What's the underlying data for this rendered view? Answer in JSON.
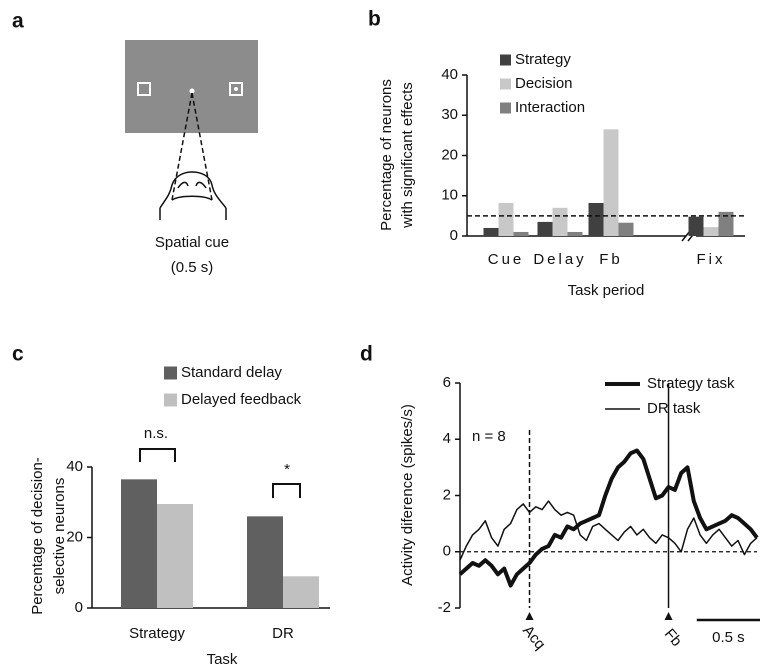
{
  "panel_a": {
    "panel_label": "a",
    "caption": [
      "Spatial cue",
      "(0.5 s)"
    ]
  },
  "chart_data": [
    {
      "type": "bar",
      "panel_label": "b",
      "ylabel": [
        "Percentage of neurons",
        "with significant effects"
      ],
      "xlabel": "Task period",
      "categories": [
        "Cue",
        "Delay",
        "Fb",
        "Fix"
      ],
      "series": [
        {
          "name": "Strategy",
          "color": "#404040",
          "values": [
            2,
            3.5,
            8.2,
            4.8
          ]
        },
        {
          "name": "Decision",
          "color": "#c8c8c8",
          "values": [
            8.2,
            7,
            26.5,
            2.2
          ]
        },
        {
          "name": "Interaction",
          "color": "#808080",
          "values": [
            1,
            1,
            3.3,
            6
          ]
        }
      ],
      "ylim": [
        0,
        40
      ],
      "yticks": [
        0,
        10,
        20,
        30,
        40
      ],
      "reference_line": 5
    },
    {
      "type": "bar",
      "panel_label": "c",
      "ylabel": [
        "Percentage of decision-",
        "selective neurons"
      ],
      "xlabel": "Task",
      "categories": [
        "Strategy",
        "DR"
      ],
      "series": [
        {
          "name": "Standard delay",
          "color": "#606060",
          "values": [
            36.5,
            26
          ]
        },
        {
          "name": "Delayed feedback",
          "color": "#c0c0c0",
          "values": [
            29.5,
            9
          ]
        }
      ],
      "ylim": [
        0,
        40
      ],
      "yticks": [
        0,
        20,
        40
      ],
      "annotations": [
        "n.s.",
        "*"
      ]
    },
    {
      "type": "line",
      "panel_label": "d",
      "ylabel": "Activity diference (spikes/s)",
      "annotation": "n = 8",
      "x": [
        -0.55,
        -0.5,
        -0.45,
        -0.4,
        -0.35,
        -0.3,
        -0.25,
        -0.2,
        -0.15,
        -0.1,
        -0.05,
        0,
        0.05,
        0.1,
        0.15,
        0.2,
        0.25,
        0.3,
        0.35,
        0.4,
        0.45,
        0.5,
        0.55,
        0.6,
        0.65,
        0.7,
        0.75,
        0.8,
        0.85,
        0.9,
        0.95,
        1,
        1.05,
        1.1,
        1.15,
        1.2,
        1.25,
        1.3,
        1.35,
        1.4,
        1.45,
        1.5,
        1.55,
        1.6,
        1.65,
        1.7,
        1.75,
        1.8
      ],
      "series": [
        {
          "name": "Strategy task",
          "color": "#111111",
          "width": 4,
          "values": [
            -0.8,
            -0.6,
            -0.4,
            -0.5,
            -0.3,
            -0.5,
            -0.8,
            -0.6,
            -1.2,
            -0.8,
            -0.6,
            -0.4,
            -0.1,
            0.1,
            0.2,
            0.6,
            0.5,
            0.9,
            0.8,
            1.0,
            1.1,
            1.2,
            1.3,
            2.0,
            2.6,
            3.0,
            3.2,
            3.5,
            3.6,
            3.3,
            2.6,
            1.9,
            2.0,
            2.3,
            2.2,
            2.8,
            3.0,
            1.8,
            1.2,
            0.8,
            0.9,
            1.0,
            1.1,
            1.3,
            1.2,
            1.0,
            0.8,
            0.5
          ]
        },
        {
          "name": "DR task",
          "color": "#111111",
          "width": 1.5,
          "values": [
            -0.3,
            0.2,
            0.6,
            0.8,
            1.1,
            0.5,
            0.2,
            0.8,
            1.0,
            1.5,
            1.7,
            1.4,
            1.6,
            1.5,
            1.8,
            1.5,
            1.3,
            1.4,
            1.3,
            0.6,
            0.4,
            0.9,
            1.0,
            0.8,
            0.6,
            0.4,
            0.7,
            0.9,
            0.6,
            0.8,
            0.5,
            0.3,
            0.6,
            0.5,
            0.3,
            0.0,
            0.8,
            1.2,
            0.6,
            0.3,
            0.6,
            0.8,
            0.5,
            0.2,
            0.4,
            -0.1,
            0.3,
            0.5
          ]
        }
      ],
      "xlim": [
        -0.55,
        1.8
      ],
      "ylim": [
        -2,
        6
      ],
      "yticks": [
        -2,
        0,
        2,
        4,
        6
      ],
      "reference_line": 0,
      "events": [
        {
          "label": "Acq",
          "x": 0,
          "style": "dashed"
        },
        {
          "label": "Fb",
          "x": 1.1,
          "style": "solid"
        }
      ],
      "scale_bar": {
        "length": 0.5,
        "label": "0.5 s"
      }
    }
  ]
}
